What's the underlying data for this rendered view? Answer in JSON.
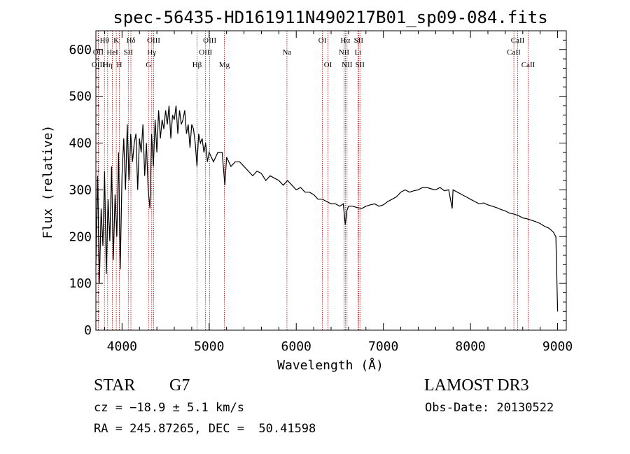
{
  "chart_data": {
    "type": "line",
    "title": "spec-56435-HD161911N490217B01_sp09-084.fits",
    "xlabel": "Wavelength (Å)",
    "ylabel": "Flux (relative)",
    "xlim": [
      3700,
      9100
    ],
    "ylim": [
      0,
      640
    ],
    "xticks": [
      4000,
      5000,
      6000,
      7000,
      8000,
      9000
    ],
    "yticks": [
      0,
      100,
      200,
      300,
      400,
      500,
      600
    ],
    "series": [
      {
        "name": "spectrum",
        "x": [
          3700,
          3720,
          3740,
          3760,
          3780,
          3800,
          3820,
          3840,
          3860,
          3880,
          3900,
          3920,
          3940,
          3960,
          3980,
          4000,
          4020,
          4040,
          4060,
          4080,
          4100,
          4120,
          4140,
          4160,
          4180,
          4200,
          4220,
          4240,
          4260,
          4280,
          4300,
          4320,
          4340,
          4360,
          4380,
          4400,
          4420,
          4440,
          4460,
          4480,
          4500,
          4520,
          4540,
          4560,
          4580,
          4600,
          4620,
          4640,
          4660,
          4680,
          4700,
          4720,
          4740,
          4760,
          4780,
          4800,
          4820,
          4840,
          4860,
          4880,
          4900,
          4920,
          4940,
          4960,
          4980,
          5000,
          5050,
          5100,
          5150,
          5180,
          5200,
          5250,
          5300,
          5350,
          5400,
          5450,
          5500,
          5550,
          5600,
          5650,
          5700,
          5750,
          5800,
          5850,
          5900,
          5950,
          6000,
          6050,
          6100,
          6150,
          6200,
          6250,
          6300,
          6350,
          6400,
          6450,
          6500,
          6540,
          6563,
          6580,
          6600,
          6650,
          6700,
          6750,
          6800,
          6850,
          6900,
          6950,
          7000,
          7050,
          7100,
          7150,
          7200,
          7250,
          7300,
          7350,
          7400,
          7450,
          7500,
          7550,
          7600,
          7650,
          7700,
          7750,
          7790,
          7800,
          7850,
          7900,
          7950,
          8000,
          8050,
          8100,
          8150,
          8200,
          8250,
          8300,
          8350,
          8400,
          8450,
          8500,
          8550,
          8600,
          8650,
          8700,
          8750,
          8800,
          8850,
          8900,
          8950,
          8980,
          9000
        ],
        "values": [
          140,
          330,
          100,
          260,
          180,
          340,
          120,
          280,
          190,
          350,
          150,
          290,
          200,
          380,
          130,
          330,
          410,
          300,
          440,
          320,
          420,
          360,
          400,
          420,
          300,
          410,
          380,
          440,
          330,
          400,
          300,
          260,
          420,
          350,
          450,
          380,
          470,
          410,
          450,
          430,
          470,
          440,
          480,
          410,
          460,
          450,
          480,
          420,
          470,
          440,
          450,
          470,
          420,
          440,
          390,
          440,
          430,
          400,
          350,
          420,
          400,
          410,
          380,
          400,
          360,
          380,
          360,
          380,
          380,
          310,
          370,
          350,
          360,
          360,
          350,
          340,
          330,
          340,
          335,
          320,
          330,
          325,
          320,
          310,
          320,
          310,
          300,
          305,
          295,
          295,
          290,
          280,
          280,
          275,
          270,
          270,
          265,
          270,
          225,
          255,
          265,
          265,
          262,
          260,
          265,
          268,
          270,
          265,
          268,
          275,
          280,
          285,
          295,
          300,
          295,
          298,
          300,
          305,
          305,
          302,
          300,
          305,
          298,
          300,
          260,
          300,
          295,
          290,
          285,
          280,
          275,
          270,
          272,
          268,
          265,
          262,
          258,
          255,
          250,
          248,
          245,
          240,
          238,
          235,
          232,
          228,
          222,
          218,
          210,
          200,
          40
        ]
      }
    ],
    "line_markers": [
      {
        "label": "Hθ",
        "x": 3798,
        "row": 1
      },
      {
        "label": "OII",
        "x": 3727,
        "row": 2
      },
      {
        "label": "OIII",
        "x": 3727,
        "row": 3
      },
      {
        "label": "K",
        "x": 3934,
        "row": 1
      },
      {
        "label": "HeI",
        "x": 3889,
        "row": 2
      },
      {
        "label": "Hη",
        "x": 3835,
        "row": 3
      },
      {
        "label": "H",
        "x": 3969,
        "row": 3
      },
      {
        "label": "Hδ",
        "x": 4102,
        "row": 1
      },
      {
        "label": "SII",
        "x": 4072,
        "row": 2
      },
      {
        "label": "OIII",
        "x": 4363,
        "row": 1
      },
      {
        "label": "Hγ",
        "x": 4341,
        "row": 2
      },
      {
        "label": "G",
        "x": 4305,
        "row": 3
      },
      {
        "label": "Hβ",
        "x": 4861,
        "row": 3
      },
      {
        "label": "OIII",
        "x": 5007,
        "row": 1
      },
      {
        "label": "OIII",
        "x": 4959,
        "row": 2
      },
      {
        "label": "Mg",
        "x": 5175,
        "row": 3
      },
      {
        "label": "Na",
        "x": 5893,
        "row": 2
      },
      {
        "label": "OI",
        "x": 6300,
        "row": 1
      },
      {
        "label": "OI",
        "x": 6364,
        "row": 3
      },
      {
        "label": "Hα",
        "x": 6563,
        "row": 1
      },
      {
        "label": "NII",
        "x": 6548,
        "row": 2
      },
      {
        "label": "NII",
        "x": 6583,
        "row": 3
      },
      {
        "label": "SII",
        "x": 6716,
        "row": 1
      },
      {
        "label": "Li",
        "x": 6708,
        "row": 2
      },
      {
        "label": "SII",
        "x": 6731,
        "row": 3
      },
      {
        "label": "CaII",
        "x": 8542,
        "row": 1
      },
      {
        "label": "CaII",
        "x": 8498,
        "row": 2
      },
      {
        "label": "CaII",
        "x": 8662,
        "row": 3
      }
    ]
  },
  "info": {
    "class_label": "STAR",
    "subclass": "G7",
    "survey": "LAMOST DR3",
    "cz": "cz = −18.9 ± 5.1 km/s",
    "obs_date": "Obs-Date: 20130522",
    "coords": "RA = 245.87265, DEC =  50.41598"
  }
}
